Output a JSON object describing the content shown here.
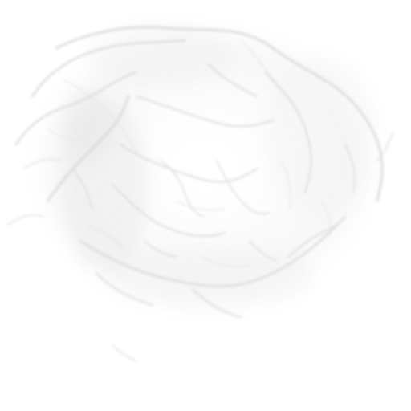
{
  "image": {
    "background_color": "#ffffff",
    "texture_color": "#d8d8d8",
    "haze_color": "#e6e6e6"
  }
}
